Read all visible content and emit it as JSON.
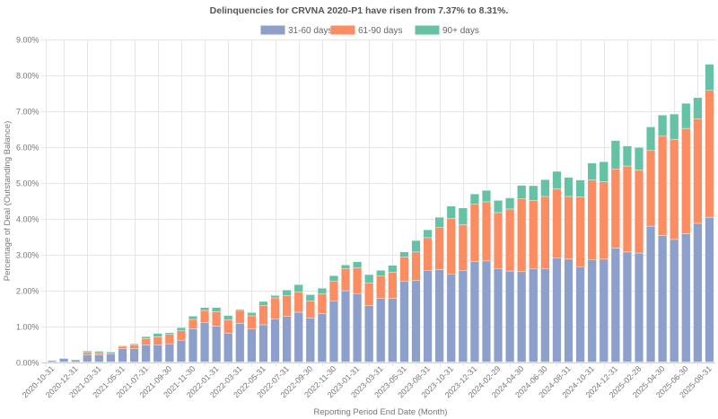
{
  "chart_data": {
    "type": "bar",
    "stacked": true,
    "title": "Delinquencies for CRVNA 2020-P1 have risen from 7.37% to 8.31%.",
    "xlabel": "Reporting Period End Date (Month)",
    "ylabel": "Percentage of Deal (Outstanding Balance)",
    "ylim": [
      0,
      9
    ],
    "yticks": [
      "0.00%",
      "1.00%",
      "2.00%",
      "3.00%",
      "4.00%",
      "5.00%",
      "6.00%",
      "7.00%",
      "8.00%",
      "9.00%"
    ],
    "grid": true,
    "legend_position": "top-center",
    "categories": [
      "2020-10-31",
      "2020-11-30",
      "2020-12-31",
      "2021-02-28",
      "2021-03-31",
      "2021-04-30",
      "2021-05-31",
      "2021-06-30",
      "2021-07-31",
      "2021-08-31",
      "2021-09-30",
      "2021-10-31",
      "2021-11-30",
      "2021-12-31",
      "2022-01-31",
      "2022-02-28",
      "2022-03-31",
      "2022-04-30",
      "2022-05-31",
      "2022-06-30",
      "2022-07-31",
      "2022-08-31",
      "2022-09-30",
      "2022-10-31",
      "2022-11-30",
      "2022-12-31",
      "2023-01-31",
      "2023-02-28",
      "2023-03-31",
      "2023-04-30",
      "2023-05-31",
      "2023-07-31",
      "2023-08-31",
      "2023-09-30",
      "2023-10-31",
      "2023-11-30",
      "2023-12-31",
      "2024-01-31",
      "2024-02-29",
      "2024-03-31",
      "2024-04-30",
      "2024-05-31",
      "2024-06-30",
      "2024-07-31",
      "2024-08-31",
      "2024-09-30",
      "2024-10-31",
      "2024-11-30",
      "2024-12-31",
      "2025-01-31",
      "2025-02-28",
      "2025-03-31",
      "2025-04-30",
      "2025-05-31",
      "2025-06-30",
      "2025-07-31",
      "2025-08-31"
    ],
    "tick_labels": [
      "2020-10-31",
      "2020-12-31",
      "2021-03-31",
      "2021-05-31",
      "2021-07-31",
      "2021-09-30",
      "2021-11-30",
      "2022-01-31",
      "2022-03-31",
      "2022-05-31",
      "2022-07-31",
      "2022-09-30",
      "2022-11-30",
      "2023-01-31",
      "2023-03-31",
      "2023-05-31",
      "2023-08-31",
      "2023-10-31",
      "2023-12-31",
      "2024-02-29",
      "2024-04-30",
      "2024-06-30",
      "2024-08-31",
      "2024-10-31",
      "2024-12-31",
      "2025-02-28",
      "2025-04-30",
      "2025-06-30",
      "2025-08-31"
    ],
    "series": [
      {
        "name": "31-60 days",
        "color": "#8da0cb",
        "values": [
          0.04,
          0.1,
          0.06,
          0.21,
          0.2,
          0.23,
          0.37,
          0.37,
          0.48,
          0.48,
          0.51,
          0.61,
          0.93,
          1.1,
          1.0,
          0.81,
          1.08,
          0.92,
          1.04,
          1.2,
          1.27,
          1.39,
          1.23,
          1.35,
          1.71,
          1.99,
          1.91,
          1.57,
          1.77,
          1.77,
          2.26,
          2.27,
          2.56,
          2.58,
          2.46,
          2.55,
          2.8,
          2.82,
          2.61,
          2.54,
          2.52,
          2.61,
          2.61,
          2.9,
          2.87,
          2.66,
          2.86,
          2.87,
          3.18,
          3.07,
          3.04,
          3.79,
          3.53,
          3.42,
          3.58,
          3.87,
          4.04
        ]
      },
      {
        "name": "61-90 days",
        "color": "#fc8d62",
        "values": [
          0,
          0,
          0,
          0.06,
          0.05,
          0.04,
          0.07,
          0.11,
          0.17,
          0.22,
          0.26,
          0.26,
          0.26,
          0.34,
          0.4,
          0.37,
          0.36,
          0.37,
          0.54,
          0.59,
          0.59,
          0.57,
          0.48,
          0.56,
          0.55,
          0.62,
          0.72,
          0.63,
          0.64,
          0.73,
          0.67,
          0.8,
          0.91,
          1.17,
          1.55,
          1.28,
          1.6,
          1.65,
          1.56,
          1.73,
          2.03,
          1.9,
          2.01,
          1.93,
          1.75,
          1.95,
          2.22,
          2.16,
          2.21,
          2.4,
          2.32,
          2.11,
          2.77,
          2.79,
          2.94,
          2.92,
          3.54
        ]
      },
      {
        "name": "90+ days",
        "color": "#66c2a5",
        "values": [
          0,
          0,
          0,
          0.04,
          0.05,
          0.02,
          0.02,
          0.03,
          0.06,
          0.1,
          0.05,
          0.09,
          0.09,
          0.08,
          0.12,
          0.12,
          0.03,
          0.09,
          0.11,
          0.07,
          0.15,
          0.2,
          0.17,
          0.15,
          0.15,
          0.1,
          0.17,
          0.24,
          0.15,
          0.2,
          0.14,
          0.32,
          0.22,
          0.29,
          0.34,
          0.47,
          0.29,
          0.32,
          0.34,
          0.31,
          0.38,
          0.41,
          0.47,
          0.49,
          0.53,
          0.47,
          0.47,
          0.56,
          0.79,
          0.56,
          0.63,
          0.66,
          0.59,
          0.71,
          0.7,
          0.59,
          0.73
        ]
      }
    ]
  }
}
